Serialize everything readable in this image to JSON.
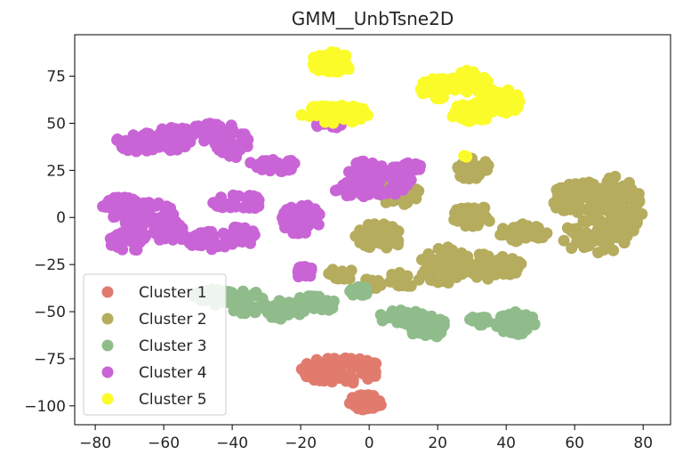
{
  "chart_data": {
    "type": "scatter",
    "title": "GMM__UnbTsne2D",
    "xlabel": "",
    "ylabel": "",
    "xlim": [
      -86,
      88
    ],
    "ylim": [
      -110,
      97
    ],
    "xticks": [
      -80,
      -60,
      -40,
      -20,
      0,
      20,
      40,
      60,
      80
    ],
    "yticks": [
      75,
      50,
      25,
      0,
      -25,
      -50,
      -75,
      -100
    ],
    "legend_position": "lower-left",
    "grid": false,
    "series": [
      {
        "name": "Cluster 1",
        "color": "#e07b6e",
        "clusters": [
          {
            "cx": -8,
            "cy": -81,
            "rx": 12,
            "ry": 7,
            "n": 90
          },
          {
            "cx": -1,
            "cy": -98,
            "rx": 5,
            "ry": 4,
            "n": 40
          }
        ]
      },
      {
        "name": "Cluster 2",
        "color": "#b5ac5e",
        "clusters": [
          {
            "cx": 30,
            "cy": 26,
            "rx": 5,
            "ry": 6,
            "n": 35
          },
          {
            "cx": 9,
            "cy": 13,
            "rx": 6,
            "ry": 7,
            "n": 40
          },
          {
            "cx": 30,
            "cy": 1,
            "rx": 6,
            "ry": 6,
            "n": 40
          },
          {
            "cx": 3,
            "cy": -10,
            "rx": 7,
            "ry": 7,
            "n": 50
          },
          {
            "cx": 45,
            "cy": -8,
            "rx": 7,
            "ry": 5,
            "n": 40
          },
          {
            "cx": 35,
            "cy": -26,
            "rx": 10,
            "ry": 7,
            "n": 70
          },
          {
            "cx": 22,
            "cy": -25,
            "rx": 8,
            "ry": 10,
            "n": 60
          },
          {
            "cx": 62,
            "cy": 10,
            "rx": 9,
            "ry": 9,
            "n": 70
          },
          {
            "cx": 72,
            "cy": 5,
            "rx": 8,
            "ry": 17,
            "n": 90
          },
          {
            "cx": 66,
            "cy": -10,
            "rx": 10,
            "ry": 9,
            "n": 60
          },
          {
            "cx": -8,
            "cy": -30,
            "rx": 5,
            "ry": 3,
            "n": 20
          },
          {
            "cx": 1,
            "cy": -35,
            "rx": 3,
            "ry": 3,
            "n": 15
          },
          {
            "cx": 10,
            "cy": -33,
            "rx": 5,
            "ry": 4,
            "n": 20
          },
          {
            "cx": -18,
            "cy": -28,
            "rx": 3,
            "ry": 2,
            "n": 10
          }
        ]
      },
      {
        "name": "Cluster 3",
        "color": "#8fbc8a",
        "clusters": [
          {
            "cx": -45,
            "cy": -43,
            "rx": 7,
            "ry": 5,
            "n": 40
          },
          {
            "cx": -36,
            "cy": -45,
            "rx": 6,
            "ry": 6,
            "n": 40
          },
          {
            "cx": -25,
            "cy": -49,
            "rx": 6,
            "ry": 5,
            "n": 40
          },
          {
            "cx": -16,
            "cy": -46,
            "rx": 6,
            "ry": 5,
            "n": 40
          },
          {
            "cx": -3,
            "cy": -39,
            "rx": 3,
            "ry": 3,
            "n": 15
          },
          {
            "cx": 10,
            "cy": -53,
            "rx": 7,
            "ry": 4,
            "n": 40
          },
          {
            "cx": 17,
            "cy": -58,
            "rx": 6,
            "ry": 6,
            "n": 40
          },
          {
            "cx": 32,
            "cy": -55,
            "rx": 3,
            "ry": 3,
            "n": 15
          },
          {
            "cx": 43,
            "cy": -56,
            "rx": 6,
            "ry": 6,
            "n": 50
          }
        ]
      },
      {
        "name": "Cluster 4",
        "color": "#c964d6",
        "clusters": [
          {
            "cx": -67,
            "cy": 40,
            "rx": 7,
            "ry": 5,
            "n": 45
          },
          {
            "cx": -57,
            "cy": 42,
            "rx": 5,
            "ry": 7,
            "n": 45
          },
          {
            "cx": -47,
            "cy": 45,
            "rx": 5,
            "ry": 5,
            "n": 35
          },
          {
            "cx": -40,
            "cy": 40,
            "rx": 5,
            "ry": 9,
            "n": 50
          },
          {
            "cx": -28,
            "cy": 28,
            "rx": 7,
            "ry": 4,
            "n": 35
          },
          {
            "cx": -12,
            "cy": 50,
            "rx": 4,
            "ry": 3,
            "n": 15
          },
          {
            "cx": -72,
            "cy": 5,
            "rx": 7,
            "ry": 6,
            "n": 50
          },
          {
            "cx": -64,
            "cy": 0,
            "rx": 8,
            "ry": 8,
            "n": 60
          },
          {
            "cx": -70,
            "cy": -12,
            "rx": 6,
            "ry": 6,
            "n": 40
          },
          {
            "cx": -58,
            "cy": -8,
            "rx": 5,
            "ry": 5,
            "n": 30
          },
          {
            "cx": -46,
            "cy": -12,
            "rx": 7,
            "ry": 5,
            "n": 40
          },
          {
            "cx": -38,
            "cy": -10,
            "rx": 5,
            "ry": 5,
            "n": 30
          },
          {
            "cx": -38,
            "cy": 8,
            "rx": 8,
            "ry": 4,
            "n": 35
          },
          {
            "cx": -20,
            "cy": -1,
            "rx": 6,
            "ry": 8,
            "n": 50
          },
          {
            "cx": -19,
            "cy": -29,
            "rx": 3,
            "ry": 3,
            "n": 15
          },
          {
            "cx": -1,
            "cy": 25,
            "rx": 5,
            "ry": 5,
            "n": 35
          },
          {
            "cx": 5,
            "cy": 20,
            "rx": 8,
            "ry": 8,
            "n": 50
          },
          {
            "cx": 12,
            "cy": 27,
            "rx": 4,
            "ry": 2,
            "n": 15
          },
          {
            "cx": -4,
            "cy": 15,
            "rx": 6,
            "ry": 5,
            "n": 30
          }
        ]
      },
      {
        "name": "Cluster 5",
        "color": "#fbfb2a",
        "clusters": [
          {
            "cx": -11,
            "cy": 82,
            "rx": 6,
            "ry": 6,
            "n": 50
          },
          {
            "cx": -10,
            "cy": 55,
            "rx": 10,
            "ry": 5,
            "n": 60
          },
          {
            "cx": 20,
            "cy": 68,
            "rx": 6,
            "ry": 6,
            "n": 40
          },
          {
            "cx": 29,
            "cy": 72,
            "rx": 6,
            "ry": 6,
            "n": 40
          },
          {
            "cx": 38,
            "cy": 62,
            "rx": 7,
            "ry": 7,
            "n": 50
          },
          {
            "cx": 30,
            "cy": 56,
            "rx": 7,
            "ry": 5,
            "n": 40
          },
          {
            "cx": 28,
            "cy": 32,
            "rx": 1,
            "ry": 1,
            "n": 4
          }
        ]
      }
    ]
  }
}
